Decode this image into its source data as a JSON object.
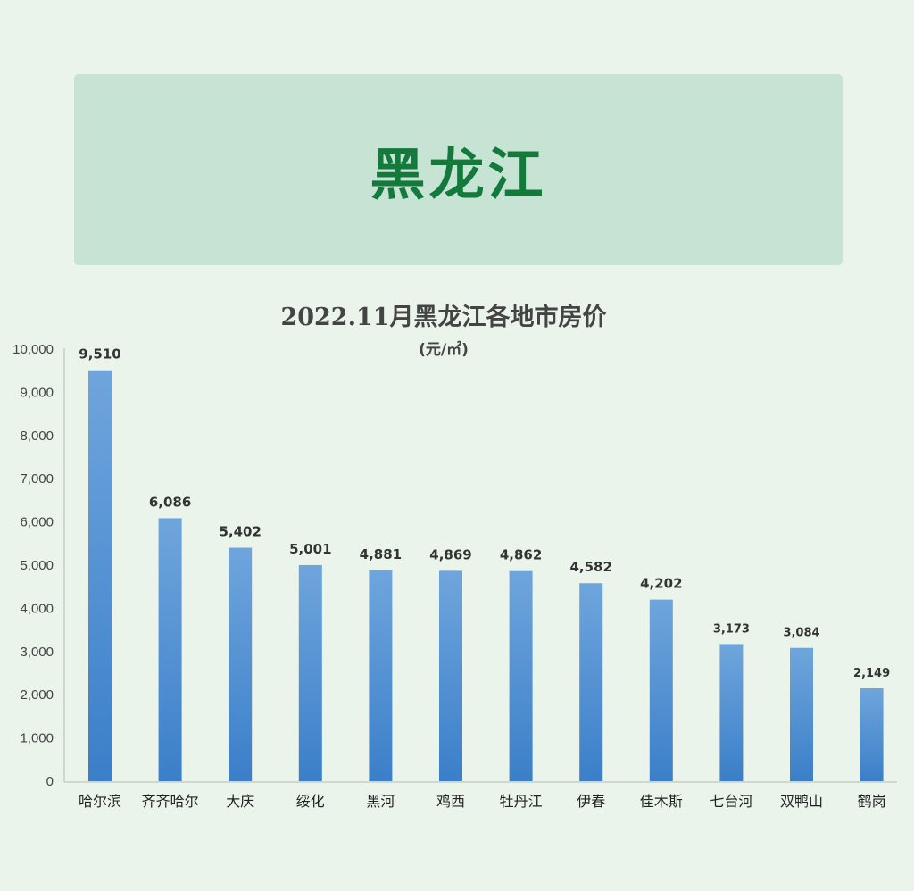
{
  "banner": {
    "title": "黑龙江"
  },
  "chart_data": {
    "type": "bar",
    "title": "2022.11月黑龙江各地市房价",
    "subtitle": "(元/㎡)",
    "categories": [
      "哈尔滨",
      "齐齐哈尔",
      "大庆",
      "绥化",
      "黑河",
      "鸡西",
      "牡丹江",
      "伊春",
      "佳木斯",
      "七台河",
      "双鸭山",
      "鹤岗"
    ],
    "values": [
      9510,
      6086,
      5402,
      5001,
      4881,
      4869,
      4862,
      4582,
      4202,
      3173,
      3084,
      2149
    ],
    "value_labels": [
      "9,510",
      "6,086",
      "5,402",
      "5,001",
      "4,881",
      "4,869",
      "4,862",
      "4,582",
      "4,202",
      "3,173",
      "3,084",
      "2,149"
    ],
    "ylim": [
      0,
      10000
    ],
    "y_ticks": [
      "0",
      "1,000",
      "2,000",
      "3,000",
      "4,000",
      "5,000",
      "6,000",
      "7,000",
      "8,000",
      "9,000",
      "10,000"
    ],
    "grid": false,
    "legend": "none",
    "bar_color": "#5b9bd5",
    "background": "#eaf4ea",
    "banner_color": "#c6e3d4",
    "banner_text_color": "#147a3c"
  }
}
